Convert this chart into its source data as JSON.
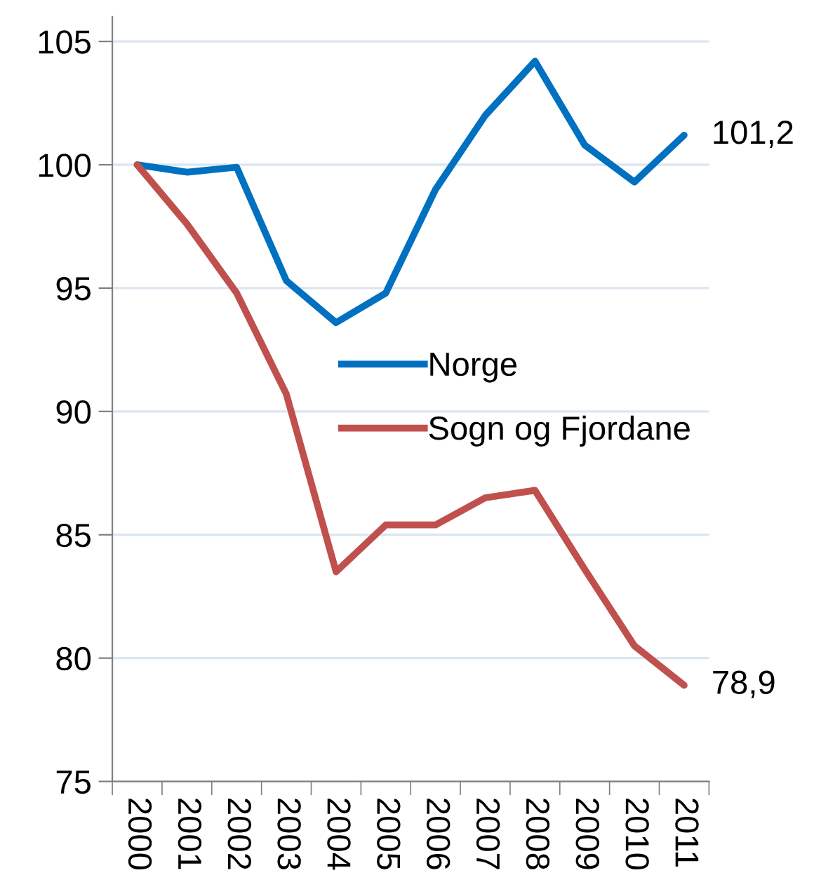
{
  "chart_data": {
    "type": "line",
    "categories": [
      "2000",
      "2001",
      "2002",
      "2003",
      "2004",
      "2005",
      "2006",
      "2007",
      "2008",
      "2009",
      "2010",
      "2011"
    ],
    "series": [
      {
        "name": "Norge",
        "color": "#0070c0",
        "values": [
          100,
          99.7,
          99.9,
          95.3,
          93.6,
          94.8,
          99.0,
          102.0,
          104.2,
          100.8,
          99.3,
          101.2
        ],
        "value_labels": [
          null,
          null,
          null,
          null,
          null,
          null,
          null,
          null,
          null,
          null,
          null,
          "101,2"
        ]
      },
      {
        "name": "Sogn og Fjordane",
        "color": "#c0504d",
        "values": [
          100,
          97.6,
          94.8,
          90.7,
          83.5,
          85.4,
          85.4,
          86.5,
          86.8,
          83.6,
          80.5,
          78.9
        ],
        "value_labels": [
          null,
          null,
          null,
          null,
          null,
          null,
          null,
          null,
          null,
          null,
          null,
          "78,9"
        ]
      }
    ],
    "ylim": [
      75,
      106
    ],
    "yticks": [
      75,
      80,
      85,
      90,
      95,
      100,
      105
    ],
    "grid": "y",
    "legend": "right",
    "marker": "none",
    "line_style": "solid"
  }
}
